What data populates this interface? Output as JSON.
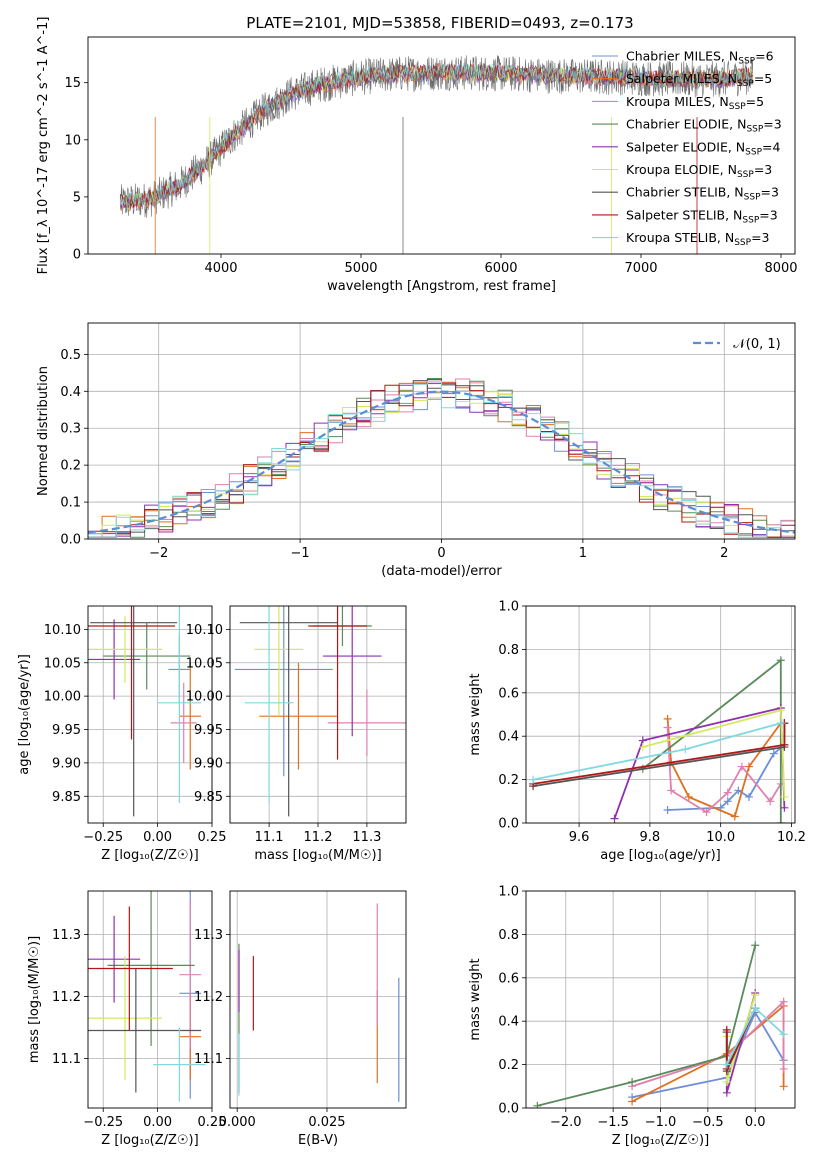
{
  "title": "PLATE=2101, MJD=53858, FIBERID=0493, z=0.173",
  "colors": {
    "Chabrier MILES": "#6d8fd8",
    "Salpeter MILES": "#e07020",
    "Kroupa MILES": "#e080b0",
    "Chabrier ELODIE": "#5a8a5a",
    "Salpeter ELODIE": "#9030b0",
    "Kroupa ELODIE": "#d4e860",
    "Chabrier STELIB": "#555555",
    "Salpeter STELIB": "#b01818",
    "Kroupa STELIB": "#80d8e0"
  },
  "legend_labels": [
    "Chabrier MILES, N_SSP=6",
    "Salpeter MILES, N_SSP=5",
    "Kroupa MILES, N_SSP=5",
    "Chabrier ELODIE, N_SSP=3",
    "Salpeter ELODIE, N_SSP=4",
    "Kroupa ELODIE, N_SSP=3",
    "Chabrier STELIB, N_SSP=3",
    "Salpeter STELIB, N_SSP=3",
    "Kroupa STELIB, N_SSP=3"
  ],
  "chart_data": [
    {
      "type": "line",
      "title": "PLATE=2101, MJD=53858, FIBERID=0493, z=0.173",
      "xlabel": "wavelength [Angstrom, rest frame]",
      "ylabel": "Flux [f_λ 10^-17 erg cm^-2 s^-1 A^-1]",
      "xlim": [
        3050,
        8100
      ],
      "ylim": [
        0,
        19
      ],
      "xticks": [
        4000,
        5000,
        6000,
        7000,
        8000
      ],
      "yticks": [
        0,
        5,
        10,
        15
      ],
      "x": [
        3280,
        3500,
        3700,
        3900,
        4100,
        4300,
        4500,
        4700,
        5000,
        5300,
        5600,
        6000,
        6400,
        6800,
        7200,
        7600,
        7800
      ],
      "y": [
        4.5,
        4.8,
        6.0,
        8.0,
        10.5,
        12.5,
        14.0,
        14.8,
        15.5,
        15.8,
        15.9,
        15.8,
        15.6,
        15.5,
        15.3,
        15.3,
        15.6
      ],
      "legend": "top-right"
    },
    {
      "type": "step",
      "xlabel": "(data-model)/error",
      "ylabel": "Normed distribution",
      "xlim": [
        -2.5,
        2.5
      ],
      "ylim": [
        0,
        0.585
      ],
      "xticks": [
        -2,
        -1,
        0,
        1,
        2
      ],
      "yticks": [
        0.0,
        0.1,
        0.2,
        0.3,
        0.4,
        0.5
      ],
      "reference_curve": "N(0,1)",
      "legend": "top-right",
      "legend_label": "𝒩(0, 1)",
      "bin_width": 0.1,
      "bins_from": -2.5,
      "grid": true
    },
    {
      "type": "errorbar",
      "xlabel": "Z [log10(Z/Z⊙)]",
      "ylabel": "age  [log10(age/yr)]",
      "xlim": [
        -0.32,
        0.25
      ],
      "ylim": [
        9.81,
        10.135
      ],
      "xticks": [
        -0.25,
        0.0,
        0.25
      ],
      "xticklabels": [
        "−0.25",
        "0.00",
        "0.25"
      ],
      "yticks": [
        9.85,
        9.9,
        9.95,
        10.0,
        10.05,
        10.1
      ],
      "points": [
        {
          "model": "Chabrier MILES",
          "x": 0.1,
          "xerr": 0.05,
          "y": 10.04,
          "yerr": 0.05
        },
        {
          "model": "Salpeter MILES",
          "x": 0.15,
          "xerr": 0.05,
          "y": 9.97,
          "yerr": 0.08
        },
        {
          "model": "Kroupa MILES",
          "x": 0.12,
          "xerr": 0.06,
          "y": 9.96,
          "yerr": 0.06
        },
        {
          "model": "Chabrier ELODIE",
          "x": -0.05,
          "xerr": 0.2,
          "y": 10.06,
          "yerr": 0.05
        },
        {
          "model": "Salpeter ELODIE",
          "x": -0.2,
          "xerr": 0.12,
          "y": 10.055,
          "yerr": 0.06
        },
        {
          "model": "Kroupa ELODIE",
          "x": -0.15,
          "xerr": 0.17,
          "y": 10.07,
          "yerr": 0.05
        },
        {
          "model": "Chabrier STELIB",
          "x": -0.11,
          "xerr": 0.2,
          "y": 10.11,
          "yerr": 0.29
        },
        {
          "model": "Salpeter STELIB",
          "x": -0.12,
          "xerr": 0.2,
          "y": 10.105,
          "yerr": 0.17
        },
        {
          "model": "Kroupa STELIB",
          "x": 0.1,
          "xerr": 0.1,
          "y": 9.99,
          "yerr": 0.15
        }
      ]
    },
    {
      "type": "errorbar",
      "xlabel": "mass [log10(M/M⊙)]",
      "xlim": [
        11.02,
        11.38
      ],
      "ylim": [
        9.81,
        10.135
      ],
      "xticks": [
        11.1,
        11.2,
        11.3
      ],
      "yticks": [
        9.85,
        9.9,
        9.95,
        10.0,
        10.05,
        10.1
      ],
      "points": [
        {
          "model": "Chabrier MILES",
          "x": 11.13,
          "xerr": 0.1,
          "y": 10.04,
          "yerr": 0.16
        },
        {
          "model": "Salpeter MILES",
          "x": 11.16,
          "xerr": 0.08,
          "y": 9.97,
          "yerr": 0.08
        },
        {
          "model": "Kroupa MILES",
          "x": 11.3,
          "xerr": 0.08,
          "y": 9.96,
          "yerr": 0.05
        },
        {
          "model": "Chabrier ELODIE",
          "x": 11.25,
          "xerr": 0.06,
          "y": 10.105,
          "yerr": 0.03
        },
        {
          "model": "Salpeter ELODIE",
          "x": 11.27,
          "xerr": 0.06,
          "y": 10.06,
          "yerr": 0.12
        },
        {
          "model": "Kroupa ELODIE",
          "x": 11.12,
          "xerr": 0.05,
          "y": 10.07,
          "yerr": 0.1
        },
        {
          "model": "Chabrier STELIB",
          "x": 11.14,
          "xerr": 0.1,
          "y": 10.11,
          "yerr": 0.29
        },
        {
          "model": "Salpeter STELIB",
          "x": 11.24,
          "xerr": 0.06,
          "y": 10.105,
          "yerr": 0.2
        },
        {
          "model": "Kroupa STELIB",
          "x": 11.1,
          "xerr": 0.05,
          "y": 9.99,
          "yerr": 0.15
        }
      ]
    },
    {
      "type": "line",
      "xlabel": "age  [log10(age/yr)]",
      "ylabel": "mass weight",
      "xlim": [
        9.45,
        10.21
      ],
      "ylim": [
        0,
        1
      ],
      "xticks": [
        9.6,
        9.8,
        10.0,
        10.2
      ],
      "yticks": [
        0.0,
        0.2,
        0.4,
        0.6,
        0.8,
        1.0
      ],
      "series": [
        {
          "model": "Chabrier MILES",
          "x": [
            9.85,
            10.0,
            10.02,
            10.05,
            10.08,
            10.15,
            10.18
          ],
          "y": [
            0.06,
            0.07,
            0.1,
            0.15,
            0.12,
            0.32,
            0.36
          ]
        },
        {
          "model": "Salpeter MILES",
          "x": [
            9.85,
            9.86,
            9.91,
            10.04,
            10.08,
            10.17
          ],
          "y": [
            0.48,
            0.28,
            0.12,
            0.03,
            0.26,
            0.46
          ]
        },
        {
          "model": "Kroupa MILES",
          "x": [
            9.85,
            9.86,
            9.96,
            10.02,
            10.06,
            10.14,
            10.17
          ],
          "y": [
            0.44,
            0.15,
            0.05,
            0.14,
            0.26,
            0.1,
            0.18
          ]
        },
        {
          "model": "Chabrier ELODIE",
          "x": [
            9.78,
            10.17,
            10.17
          ],
          "y": [
            0.25,
            0.75,
            0.0
          ]
        },
        {
          "model": "Salpeter ELODIE",
          "x": [
            9.7,
            9.78,
            10.17,
            10.18
          ],
          "y": [
            0.02,
            0.38,
            0.53,
            0.07
          ]
        },
        {
          "model": "Kroupa ELODIE",
          "x": [
            9.78,
            10.17,
            10.18
          ],
          "y": [
            0.35,
            0.52,
            0.12
          ]
        },
        {
          "model": "Chabrier STELIB",
          "x": [
            9.47,
            10.18,
            10.18
          ],
          "y": [
            0.17,
            0.35,
            0.46
          ]
        },
        {
          "model": "Salpeter STELIB",
          "x": [
            9.47,
            10.18,
            10.18
          ],
          "y": [
            0.18,
            0.36,
            0.46
          ]
        },
        {
          "model": "Kroupa STELIB",
          "x": [
            9.47,
            9.9,
            10.17
          ],
          "y": [
            0.2,
            0.34,
            0.46
          ]
        }
      ]
    },
    {
      "type": "errorbar",
      "xlabel": "Z [log10(Z/Z⊙)]",
      "ylabel": "mass [log10(M/M⊙)]",
      "xlim": [
        -0.32,
        0.25
      ],
      "ylim": [
        11.02,
        11.37
      ],
      "xticks": [
        -0.25,
        0.0,
        0.25
      ],
      "xticklabels": [
        "−0.25",
        "0.00",
        "0.25"
      ],
      "yticks": [
        11.1,
        11.2,
        11.3
      ],
      "points": [
        {
          "model": "Chabrier MILES",
          "x": 0.15,
          "xerr": 0.05,
          "y": 11.205,
          "yerr": 0.17
        },
        {
          "model": "Salpeter MILES",
          "x": 0.15,
          "xerr": 0.05,
          "y": 11.135,
          "yerr": 0.07
        },
        {
          "model": "Kroupa MILES",
          "x": 0.15,
          "xerr": 0.05,
          "y": 11.235,
          "yerr": 0.12
        },
        {
          "model": "Chabrier ELODIE",
          "x": -0.03,
          "xerr": 0.2,
          "y": 11.25,
          "yerr": 0.13
        },
        {
          "model": "Salpeter ELODIE",
          "x": -0.2,
          "xerr": 0.12,
          "y": 11.26,
          "yerr": 0.07
        },
        {
          "model": "Kroupa ELODIE",
          "x": -0.15,
          "xerr": 0.17,
          "y": 11.165,
          "yerr": 0.1
        },
        {
          "model": "Chabrier STELIB",
          "x": -0.1,
          "xerr": 0.3,
          "y": 11.145,
          "yerr": 0.1
        },
        {
          "model": "Salpeter STELIB",
          "x": -0.13,
          "xerr": 0.2,
          "y": 11.245,
          "yerr": 0.1
        },
        {
          "model": "Kroupa STELIB",
          "x": 0.1,
          "xerr": 0.12,
          "y": 11.09,
          "yerr": 0.06
        }
      ]
    },
    {
      "type": "errorbar",
      "xlabel": "E(B-V)",
      "xlim": [
        -0.002,
        0.047
      ],
      "ylim": [
        11.02,
        11.37
      ],
      "xticks": [
        0.0,
        0.025
      ],
      "xticklabels": [
        "0.000",
        "0.025"
      ],
      "yticks": [
        11.1,
        11.2,
        11.3
      ],
      "points": [
        {
          "model": "Chabrier MILES",
          "x": 0.045,
          "y": 11.13,
          "yerr": 0.1
        },
        {
          "model": "Salpeter MILES",
          "x": 0.039,
          "y": 11.135,
          "yerr": 0.075
        },
        {
          "model": "Kroupa MILES",
          "x": 0.039,
          "y": 11.25,
          "yerr": 0.1
        },
        {
          "model": "Chabrier ELODIE",
          "x": 0.0005,
          "y": 11.165,
          "yerr": 0.12
        },
        {
          "model": "Salpeter ELODIE",
          "x": 0.0005,
          "y": 11.225,
          "yerr": 0.05
        },
        {
          "model": "Salpeter STELIB",
          "x": 0.0045,
          "y": 11.205,
          "yerr": 0.06
        },
        {
          "model": "Kroupa STELIB",
          "x": 0.0005,
          "y": 11.09,
          "yerr": 0.05
        }
      ]
    },
    {
      "type": "line",
      "xlabel": "Z [log10(Z/Z⊙)]",
      "ylabel": "mass weight",
      "xlim": [
        -2.42,
        0.42
      ],
      "ylim": [
        0,
        1
      ],
      "xticks": [
        -2.0,
        -1.5,
        -1.0,
        -0.5,
        0.0
      ],
      "xticklabels": [
        "−2.0",
        "−1.5",
        "−1.0",
        "−0.5",
        "0.0"
      ],
      "yticks": [
        0.0,
        0.2,
        0.4,
        0.6,
        0.8,
        1.0
      ],
      "series": [
        {
          "model": "Chabrier MILES",
          "x": [
            -1.3,
            -0.3,
            0.0,
            0.3
          ],
          "y": [
            0.05,
            0.14,
            0.44,
            0.22
          ]
        },
        {
          "model": "Salpeter MILES",
          "x": [
            -1.3,
            -0.3,
            0.3,
            0.3
          ],
          "y": [
            0.03,
            0.25,
            0.47,
            0.1
          ]
        },
        {
          "model": "Kroupa MILES",
          "x": [
            -1.3,
            -0.3,
            0.3,
            0.3
          ],
          "y": [
            0.1,
            0.24,
            0.49,
            0.18
          ]
        },
        {
          "model": "Chabrier ELODIE",
          "x": [
            -2.3,
            -1.3,
            -0.3,
            0.0
          ],
          "y": [
            0.01,
            0.12,
            0.24,
            0.75
          ]
        },
        {
          "model": "Salpeter ELODIE",
          "x": [
            -0.3,
            -0.3,
            0.0
          ],
          "y": [
            0.35,
            0.07,
            0.53
          ]
        },
        {
          "model": "Kroupa ELODIE",
          "x": [
            -0.3,
            -0.3,
            0.0
          ],
          "y": [
            0.33,
            0.12,
            0.52
          ]
        },
        {
          "model": "Chabrier STELIB",
          "x": [
            -0.3,
            -0.3,
            0.0
          ],
          "y": [
            0.35,
            0.17,
            0.46
          ]
        },
        {
          "model": "Salpeter STELIB",
          "x": [
            -0.3,
            -0.3,
            0.0
          ],
          "y": [
            0.36,
            0.18,
            0.46
          ]
        },
        {
          "model": "Kroupa STELIB",
          "x": [
            -0.3,
            0.0,
            0.3
          ],
          "y": [
            0.2,
            0.46,
            0.34
          ]
        }
      ]
    }
  ]
}
